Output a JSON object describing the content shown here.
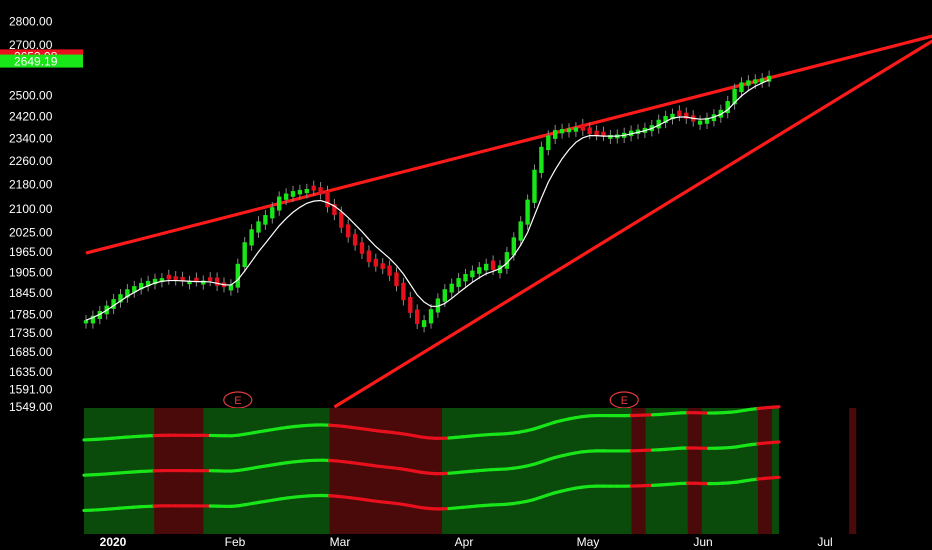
{
  "chart_data": {
    "type": "candlestick",
    "y_scale": "log",
    "ylim": [
      1549,
      2850
    ],
    "y_ticks": [
      "2800.00",
      "2700.00",
      "2500.00",
      "2420.00",
      "2340.00",
      "2260.00",
      "2180.00",
      "2100.00",
      "2025.00",
      "1965.00",
      "1905.00",
      "1845.00",
      "1785.00",
      "1735.00",
      "1685.00",
      "1635.00",
      "1591.00",
      "1549.00"
    ],
    "x_labels": [
      "2020",
      "Feb",
      "Mar",
      "Apr",
      "May",
      "Jun",
      "Jul"
    ],
    "price_tags": [
      {
        "text": "2653.98",
        "color": "#e8101c"
      },
      {
        "text": "2649.19",
        "color": "#19e619"
      }
    ],
    "earnings_marker": "E",
    "colors": {
      "up": "#19e619",
      "down": "#e8101c",
      "ma": "#ffffff",
      "trendline": "#ff1a1a",
      "background": "#000000"
    },
    "candles_close": [
      1770,
      1782,
      1795,
      1810,
      1828,
      1842,
      1856,
      1865,
      1874,
      1880,
      1886,
      1888,
      1884,
      1882,
      1880,
      1880,
      1879,
      1881,
      1880,
      1866,
      1862,
      1870,
      1930,
      1995,
      2035,
      2060,
      2080,
      2105,
      2140,
      2150,
      2158,
      2162,
      2165,
      2160,
      2148,
      2105,
      2080,
      2040,
      2010,
      1985,
      1960,
      1935,
      1922,
      1915,
      1895,
      1865,
      1825,
      1790,
      1760,
      1770,
      1800,
      1830,
      1856,
      1872,
      1888,
      1900,
      1910,
      1920,
      1930,
      1912,
      1925,
      1965,
      2010,
      2060,
      2130,
      2230,
      2310,
      2350,
      2370,
      2374,
      2376,
      2380,
      2368,
      2356,
      2352,
      2350,
      2352,
      2354,
      2360,
      2368,
      2372,
      2378,
      2388,
      2408,
      2422,
      2430,
      2422,
      2412,
      2402,
      2405,
      2415,
      2428,
      2445,
      2478,
      2525,
      2550,
      2558,
      2562,
      2566,
      2576
    ],
    "candles_up": [
      true,
      true,
      true,
      true,
      true,
      true,
      true,
      true,
      true,
      true,
      true,
      true,
      false,
      false,
      false,
      true,
      false,
      true,
      false,
      false,
      false,
      true,
      true,
      true,
      true,
      true,
      true,
      true,
      true,
      true,
      true,
      true,
      true,
      false,
      false,
      false,
      false,
      false,
      false,
      false,
      false,
      false,
      false,
      false,
      false,
      false,
      false,
      false,
      false,
      true,
      true,
      true,
      true,
      true,
      true,
      true,
      true,
      true,
      true,
      false,
      true,
      true,
      true,
      true,
      true,
      true,
      true,
      true,
      true,
      true,
      true,
      true,
      false,
      false,
      false,
      false,
      true,
      true,
      true,
      true,
      true,
      true,
      true,
      true,
      true,
      true,
      false,
      false,
      false,
      true,
      true,
      true,
      true,
      true,
      true,
      true,
      true,
      true,
      true,
      true
    ],
    "moving_average": [
      1770,
      1777,
      1786,
      1797,
      1810,
      1823,
      1836,
      1847,
      1858,
      1866,
      1874,
      1879,
      1881,
      1881,
      1880,
      1879,
      1878,
      1878,
      1877,
      1873,
      1869,
      1868,
      1883,
      1909,
      1937,
      1966,
      1992,
      2019,
      2046,
      2069,
      2089,
      2105,
      2118,
      2125,
      2127,
      2120,
      2109,
      2092,
      2072,
      2050,
      2028,
      2004,
      1982,
      1964,
      1946,
      1925,
      1900,
      1870,
      1840,
      1820,
      1808,
      1808,
      1816,
      1830,
      1846,
      1861,
      1876,
      1889,
      1901,
      1908,
      1916,
      1932,
      1955,
      1986,
      2025,
      2079,
      2135,
      2188,
      2230,
      2268,
      2300,
      2326,
      2342,
      2350,
      2350,
      2348,
      2348,
      2348,
      2351,
      2356,
      2362,
      2368,
      2376,
      2388,
      2401,
      2414,
      2418,
      2418,
      2413,
      2410,
      2411,
      2418,
      2428,
      2445,
      2472,
      2498,
      2518,
      2535,
      2548,
      2560
    ],
    "trendlines": [
      {
        "name": "upper",
        "from": {
          "i": 0,
          "price": 1962
        },
        "to": {
          "i": 140,
          "price": 2870
        }
      },
      {
        "name": "lower",
        "from": {
          "i": 36,
          "price": 1549
        },
        "to": {
          "i": 130,
          "price": 2850
        }
      }
    ],
    "earnings_markers_at": [
      22,
      78,
      134
    ],
    "indicator": {
      "lines": 3,
      "base_levels": [
        0.78,
        0.5,
        0.22
      ],
      "bear_zones": [
        [
          10,
          17
        ],
        [
          35,
          51
        ],
        [
          78,
          80
        ],
        [
          86,
          88
        ],
        [
          96,
          98
        ],
        [
          109,
          110
        ]
      ]
    }
  }
}
